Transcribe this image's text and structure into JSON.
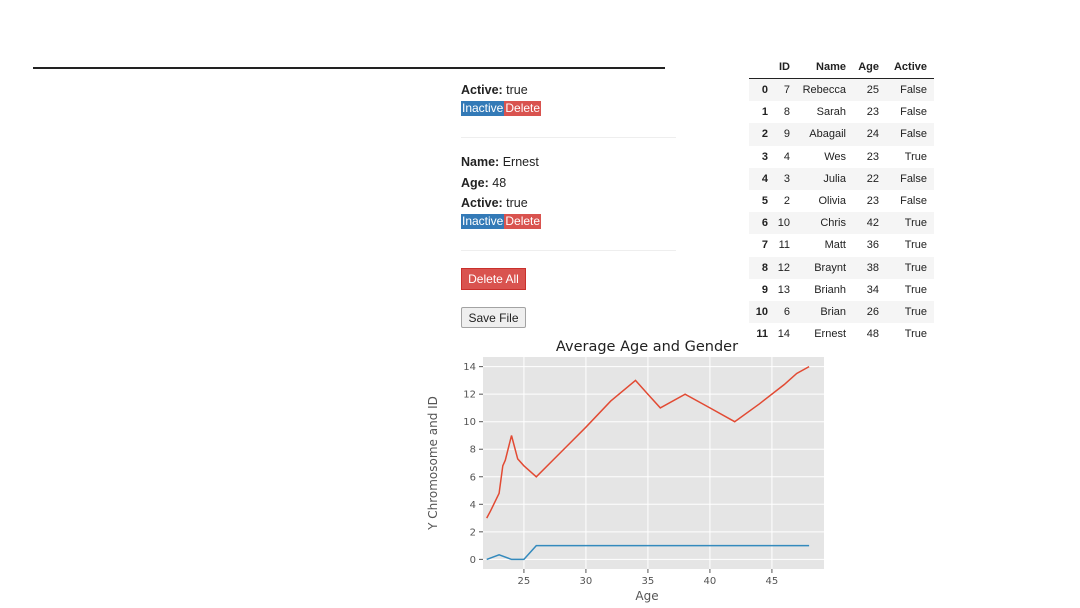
{
  "records": [
    {
      "fields": [
        {
          "label": "Active:",
          "value": "true"
        }
      ],
      "inactive_label": "Inactive",
      "delete_label": "Delete"
    },
    {
      "fields": [
        {
          "label": "Name:",
          "value": "Ernest"
        },
        {
          "label": "Age:",
          "value": "48"
        },
        {
          "label": "Active:",
          "value": "true"
        }
      ],
      "inactive_label": "Inactive",
      "delete_label": "Delete"
    }
  ],
  "actions": {
    "delete_all_label": "Delete All",
    "save_file_label": "Save File"
  },
  "table": {
    "columns": [
      "",
      "ID",
      "Name",
      "Age",
      "Active"
    ],
    "rows": [
      [
        "0",
        "7",
        "Rebecca",
        "25",
        "False"
      ],
      [
        "1",
        "8",
        "Sarah",
        "23",
        "False"
      ],
      [
        "2",
        "9",
        "Abagail",
        "24",
        "False"
      ],
      [
        "3",
        "4",
        "Wes",
        "23",
        "True"
      ],
      [
        "4",
        "3",
        "Julia",
        "22",
        "False"
      ],
      [
        "5",
        "2",
        "Olivia",
        "23",
        "False"
      ],
      [
        "6",
        "10",
        "Chris",
        "42",
        "True"
      ],
      [
        "7",
        "11",
        "Matt",
        "36",
        "True"
      ],
      [
        "8",
        "12",
        "Braynt",
        "38",
        "True"
      ],
      [
        "9",
        "13",
        "Brianh",
        "34",
        "True"
      ],
      [
        "10",
        "6",
        "Brian",
        "26",
        "True"
      ],
      [
        "11",
        "14",
        "Ernest",
        "48",
        "True"
      ]
    ]
  },
  "colors": {
    "primary": "#337ab7",
    "danger": "#d9534f",
    "series_red": "#e24a33",
    "series_blue": "#348abd",
    "plot_bg": "#e5e5e5"
  },
  "chart_data": {
    "type": "line",
    "title": "Average Age and Gender",
    "xlabel": "Age",
    "ylabel": "Y Chromosome and ID",
    "xlim": [
      21.7,
      49.2
    ],
    "ylim": [
      -0.7,
      14.7
    ],
    "xticks": [
      25,
      30,
      35,
      40,
      45
    ],
    "yticks": [
      0,
      2,
      4,
      6,
      8,
      10,
      12,
      14
    ],
    "grid": true,
    "series": [
      {
        "color": "#e24a33",
        "x": [
          22,
          22.3,
          23,
          23.3,
          23.5,
          24,
          24.5,
          25,
          26,
          28,
          30,
          32,
          34,
          35,
          36,
          38,
          40,
          42,
          44,
          46,
          47,
          48
        ],
        "y": [
          3,
          3.5,
          4.8,
          6.8,
          7.2,
          9,
          7.3,
          6.8,
          6,
          7.8,
          9.6,
          11.5,
          13,
          12,
          11,
          12,
          11,
          10,
          11.3,
          12.7,
          13.5,
          14
        ]
      },
      {
        "color": "#348abd",
        "x": [
          22,
          23,
          24,
          25,
          26,
          48
        ],
        "y": [
          0,
          0.33,
          0,
          0,
          1,
          1
        ]
      }
    ]
  }
}
